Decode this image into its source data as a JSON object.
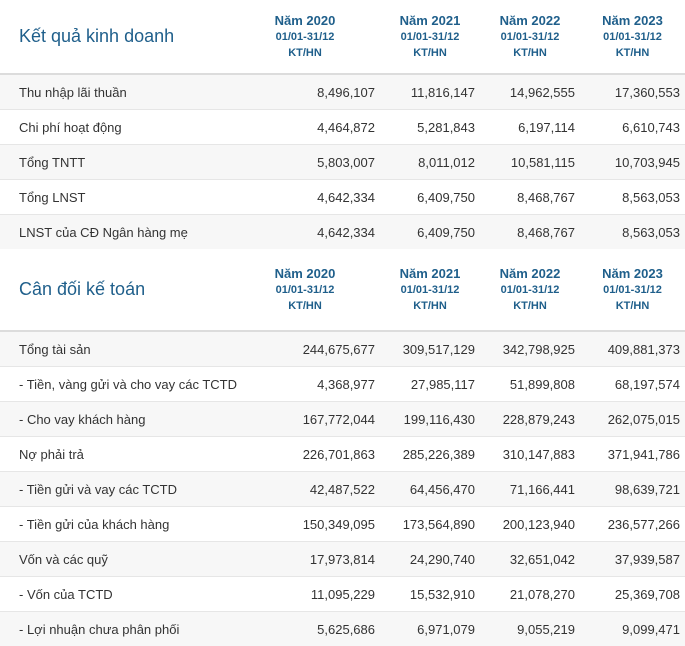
{
  "sections": [
    {
      "title": "Kết quả kinh doanh",
      "columns": [
        {
          "year": "Năm 2020",
          "period": "01/01-31/12",
          "unit": "KT/HN"
        },
        {
          "year": "Năm 2021",
          "period": "01/01-31/12",
          "unit": "KT/HN"
        },
        {
          "year": "Năm 2022",
          "period": "01/01-31/12",
          "unit": "KT/HN"
        },
        {
          "year": "Năm 2023",
          "period": "01/01-31/12",
          "unit": "KT/HN"
        }
      ],
      "rows": [
        {
          "label": "Thu nhập lãi thuần",
          "values": [
            "8,496,107",
            "11,816,147",
            "14,962,555",
            "17,360,553"
          ]
        },
        {
          "label": "Chi phí hoạt động",
          "values": [
            "4,464,872",
            "5,281,843",
            "6,197,114",
            "6,610,743"
          ]
        },
        {
          "label": "Tổng TNTT",
          "values": [
            "5,803,007",
            "8,011,012",
            "10,581,115",
            "10,703,945"
          ]
        },
        {
          "label": "Tổng LNST",
          "values": [
            "4,642,334",
            "6,409,750",
            "8,468,767",
            "8,563,053"
          ]
        },
        {
          "label": "LNST của CĐ Ngân hàng mẹ",
          "values": [
            "4,642,334",
            "6,409,750",
            "8,468,767",
            "8,563,053"
          ]
        }
      ]
    },
    {
      "title": "Cân đối kế toán",
      "columns": [
        {
          "year": "Năm 2020",
          "period": "01/01-31/12",
          "unit": "KT/HN"
        },
        {
          "year": "Năm 2021",
          "period": "01/01-31/12",
          "unit": "KT/HN"
        },
        {
          "year": "Năm 2022",
          "period": "01/01-31/12",
          "unit": "KT/HN"
        },
        {
          "year": "Năm 2023",
          "period": "01/01-31/12",
          "unit": "KT/HN"
        }
      ],
      "rows": [
        {
          "label": "Tổng tài sản",
          "values": [
            "244,675,677",
            "309,517,129",
            "342,798,925",
            "409,881,373"
          ]
        },
        {
          "label": "- Tiền, vàng gửi và cho vay các TCTD",
          "values": [
            "4,368,977",
            "27,985,117",
            "51,899,808",
            "68,197,574"
          ]
        },
        {
          "label": "- Cho vay khách hàng",
          "values": [
            "167,772,044",
            "199,116,430",
            "228,879,243",
            "262,075,015"
          ]
        },
        {
          "label": "Nợ phải trả",
          "values": [
            "226,701,863",
            "285,226,389",
            "310,147,883",
            "371,941,786"
          ]
        },
        {
          "label": "- Tiền gửi và vay các TCTD",
          "values": [
            "42,487,522",
            "64,456,470",
            "71,166,441",
            "98,639,721"
          ]
        },
        {
          "label": "- Tiền gửi của khách hàng",
          "values": [
            "150,349,095",
            "173,564,890",
            "200,123,940",
            "236,577,266"
          ]
        },
        {
          "label": "Vốn và các quỹ",
          "values": [
            "17,973,814",
            "24,290,740",
            "32,651,042",
            "37,939,587"
          ]
        },
        {
          "label": "- Vốn của TCTD",
          "values": [
            "11,095,229",
            "15,532,910",
            "21,078,270",
            "25,369,708"
          ]
        },
        {
          "label": "- Lợi nhuận chưa phân phối",
          "values": [
            "5,625,686",
            "6,971,079",
            "9,055,219",
            "9,099,471"
          ]
        }
      ]
    }
  ],
  "colors": {
    "heading": "#1f5f8b",
    "text": "#333333",
    "row_alt": "#f7f7f7",
    "border": "#e6e6e6"
  }
}
